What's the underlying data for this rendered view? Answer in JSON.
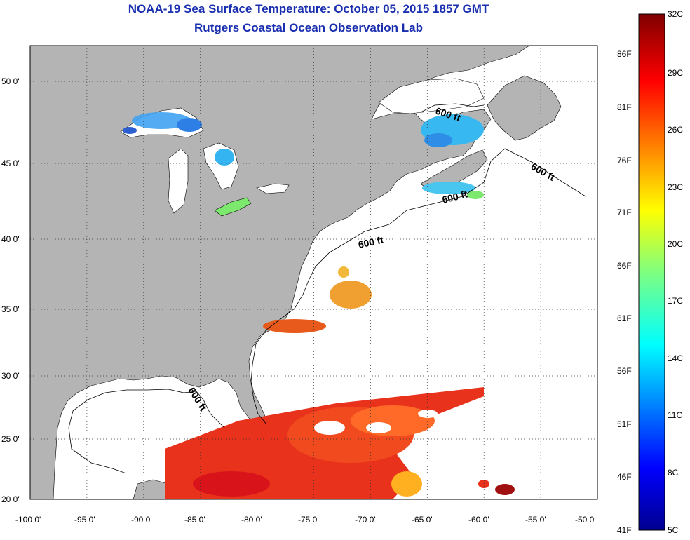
{
  "title": {
    "line1": "NOAA-19 Sea Surface Temperature:  October 05, 2015 1857 GMT",
    "line2": "Rutgers Coastal Ocean Observation Lab"
  },
  "map": {
    "lon_ticks": [
      "-100 0'",
      "-95 0'",
      "-90 0'",
      "-85 0'",
      "-80 0'",
      "-75 0'",
      "-70 0'",
      "-65 0'",
      "-60 0'",
      "-55 0'",
      "-50 0'"
    ],
    "lat_ticks": [
      "50 0'",
      "45 0'",
      "40 0'",
      "35 0'",
      "30 0'",
      "25 0'",
      "20 0'"
    ],
    "contour_labels": [
      "600 ft",
      "600 ft",
      "600 ft",
      "600 ft",
      "600 ft"
    ],
    "colors": {
      "land": "#b4b4b4",
      "ocean_cloud": "#ffffff",
      "grid": "#333333"
    }
  },
  "colorbar": {
    "celsius_labels": [
      "32C",
      "29C",
      "26C",
      "23C",
      "20C",
      "17C",
      "14C",
      "11C",
      "8C",
      "5C"
    ],
    "fahrenheit_labels": [
      "86F",
      "81F",
      "76F",
      "71F",
      "66F",
      "61F",
      "56F",
      "51F",
      "46F",
      "41F"
    ]
  }
}
